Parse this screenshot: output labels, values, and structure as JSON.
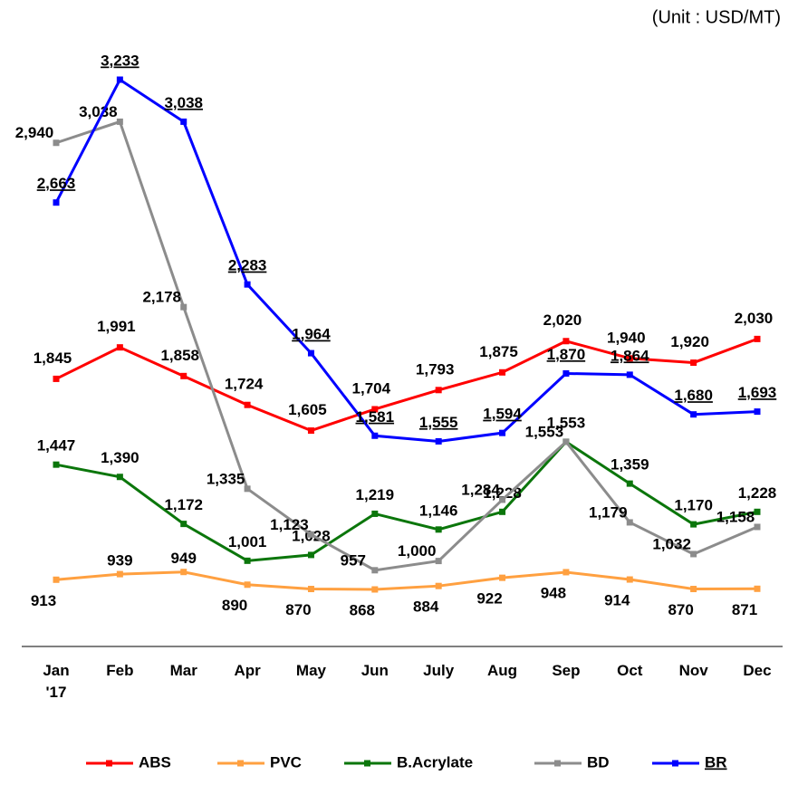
{
  "chart_data": {
    "type": "line",
    "subtitle": "(Unit : USD/MT)",
    "categories": [
      "Jan\n'17",
      "Feb",
      "Mar",
      "Apr",
      "May",
      "Jun",
      "July",
      "Aug",
      "Sep",
      "Oct",
      "Nov",
      "Dec"
    ],
    "series": [
      {
        "name": "ABS",
        "color": "#ff0000",
        "values": [
          1845,
          1991,
          1858,
          1724,
          1605,
          1704,
          1793,
          1875,
          2020,
          1940,
          1920,
          2030
        ],
        "value_labels": [
          "1,845",
          "1,991",
          "1,858",
          "1,724",
          "1,605",
          "1,704",
          "1,793",
          "1,875",
          "2,020",
          "1,940",
          "1,920",
          "2,030"
        ]
      },
      {
        "name": "PVC",
        "color": "#ffa040",
        "values": [
          913,
          939,
          949,
          890,
          870,
          868,
          884,
          922,
          948,
          914,
          870,
          871
        ],
        "value_labels": [
          "913",
          "939",
          "949",
          "890",
          "870",
          "868",
          "884",
          "922",
          "948",
          "914",
          "870",
          "871"
        ]
      },
      {
        "name": "B.Acrylate",
        "color": "#0b760b",
        "values": [
          1447,
          1390,
          1172,
          1001,
          1028,
          1219,
          1146,
          1228,
          1553,
          1359,
          1170,
          1228
        ],
        "value_labels": [
          "1,447",
          "1,390",
          "1,172",
          "1,001",
          "1,028",
          "1,219",
          "1,146",
          "1,228",
          "1,553",
          "1,359",
          "1,170",
          "1,228"
        ]
      },
      {
        "name": "BD",
        "color": "#8c8c8c",
        "values": [
          2940,
          3038,
          2178,
          1335,
          1123,
          957,
          1000,
          1284,
          1553,
          1179,
          1032,
          1158
        ],
        "value_labels": [
          "2,940",
          "3,038",
          "2,178",
          "1,335",
          "1,123",
          "957",
          "1,000",
          "1,284",
          "1,553",
          "1,179",
          "1,032",
          "1,158"
        ]
      },
      {
        "name": "BR",
        "color": "#0000ff",
        "values": [
          2663,
          3233,
          3038,
          2283,
          1964,
          1581,
          1555,
          1594,
          1870,
          1864,
          1680,
          1693
        ],
        "value_labels": [
          "2,663",
          "3,233",
          "3,038",
          "2,283",
          "1,964",
          "1,581",
          "1,555",
          "1,594",
          "1,870",
          "1,864",
          "1,680",
          "1,693"
        ]
      }
    ]
  }
}
